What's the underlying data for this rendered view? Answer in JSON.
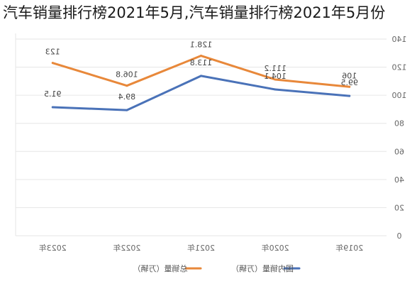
{
  "caption": "汽车销量排行榜2021年5月,汽车销量排行榜2021年5月份",
  "chart_data": {
    "type": "line",
    "x_axis_mirrored": true,
    "y_axis_position": "right",
    "categories": [
      "2023年",
      "2022年",
      "2021年",
      "2020年",
      "2019年"
    ],
    "series": [
      {
        "name": "总销量（万辆）",
        "color": "#e8883a",
        "values": [
          123,
          106.8,
          128.1,
          111.2,
          106
        ],
        "labels": [
          "123",
          "106.8",
          "128.1",
          "111.2",
          "106"
        ]
      },
      {
        "name": "国内销量（万辆）",
        "color": "#4a72b8",
        "values": [
          91.5,
          89.4,
          113.8,
          104.1,
          99.5
        ],
        "labels": [
          "91.5",
          "89.4",
          "113.8",
          "104.1",
          "99.5"
        ]
      }
    ],
    "ylim": [
      0,
      140
    ],
    "yticks": [
      0,
      20,
      40,
      60,
      80,
      100,
      120,
      140
    ],
    "grid": true,
    "legend_position": "bottom"
  }
}
